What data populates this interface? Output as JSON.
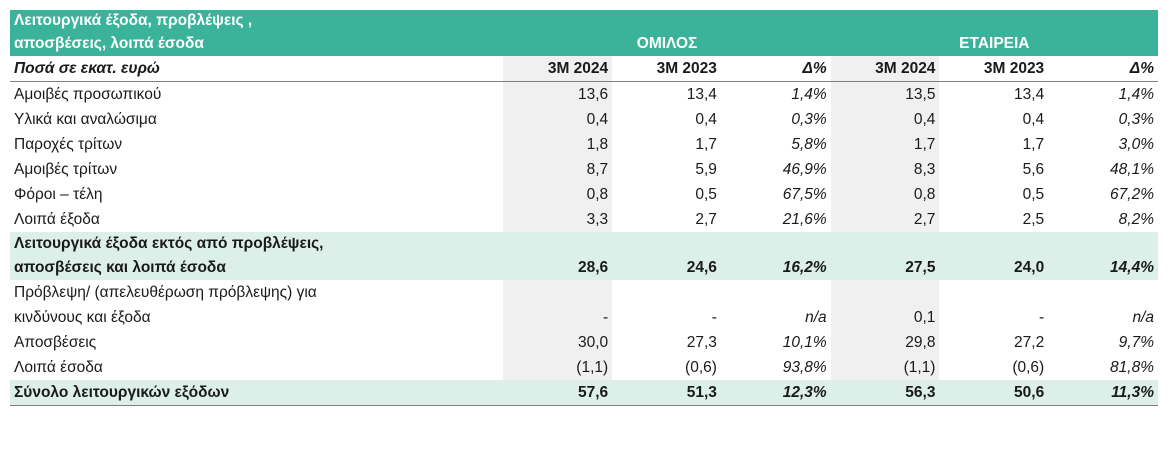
{
  "header": {
    "title_line1": "Λειτουργικά έξοδα, προβλέψεις ,",
    "title_line2": "αποσβέσεις, λοιπά έσοδα",
    "group_a": "ΟΜΙΛΟΣ",
    "group_b": "ΕΤΑΙΡΕΙΑ"
  },
  "columns": {
    "label": "Ποσά σε εκατ. ευρώ",
    "items": [
      "3M 2024",
      "3M 2023",
      "Δ%",
      "3M 2024",
      "3M 2023",
      "Δ%"
    ]
  },
  "rows": [
    {
      "label": "Αμοιβές προσωπικού",
      "values": [
        "13,6",
        "13,4",
        "1,4%",
        "13,5",
        "13,4",
        "1,4%"
      ]
    },
    {
      "label": "Υλικά και αναλώσιμα",
      "values": [
        "0,4",
        "0,4",
        "0,3%",
        "0,4",
        "0,4",
        "0,3%"
      ]
    },
    {
      "label": "Παροχές τρίτων",
      "values": [
        "1,8",
        "1,7",
        "5,8%",
        "1,7",
        "1,7",
        "3,0%"
      ]
    },
    {
      "label": "Αμοιβές τρίτων",
      "values": [
        "8,7",
        "5,9",
        "46,9%",
        "8,3",
        "5,6",
        "48,1%"
      ]
    },
    {
      "label": "Φόροι – τέλη",
      "values": [
        "0,8",
        "0,5",
        "67,5%",
        "0,8",
        "0,5",
        "67,2%"
      ]
    },
    {
      "label": "Λοιπά έξοδα",
      "values": [
        "3,3",
        "2,7",
        "21,6%",
        "2,7",
        "2,5",
        "8,2%"
      ]
    }
  ],
  "subtotal": {
    "label_line1": "Λειτουργικά έξοδα εκτός από προβλέψεις,",
    "label_line2": "αποσβέσεις και λοιπά έσοδα",
    "values": [
      "28,6",
      "24,6",
      "16,2%",
      "27,5",
      "24,0",
      "14,4%"
    ]
  },
  "provision": {
    "label_line1": "Πρόβλεψη/ (απελευθέρωση πρόβλεψης) για",
    "label_line2": "κινδύνους και έξοδα",
    "values": [
      "-",
      "-",
      "n/a",
      "0,1",
      "-",
      "n/a"
    ]
  },
  "rows2": [
    {
      "label": "Αποσβέσεις",
      "values": [
        "30,0",
        "27,3",
        "10,1%",
        "29,8",
        "27,2",
        "9,7%"
      ]
    },
    {
      "label": "Λοιπά έσοδα",
      "values": [
        "(1,1)",
        "(0,6)",
        "93,8%",
        "(1,1)",
        "(0,6)",
        "81,8%"
      ]
    }
  ],
  "total": {
    "label": "Σύνολο λειτουργικών εξόδων",
    "values": [
      "57,6",
      "51,3",
      "12,3%",
      "56,3",
      "50,6",
      "11,3%"
    ]
  }
}
